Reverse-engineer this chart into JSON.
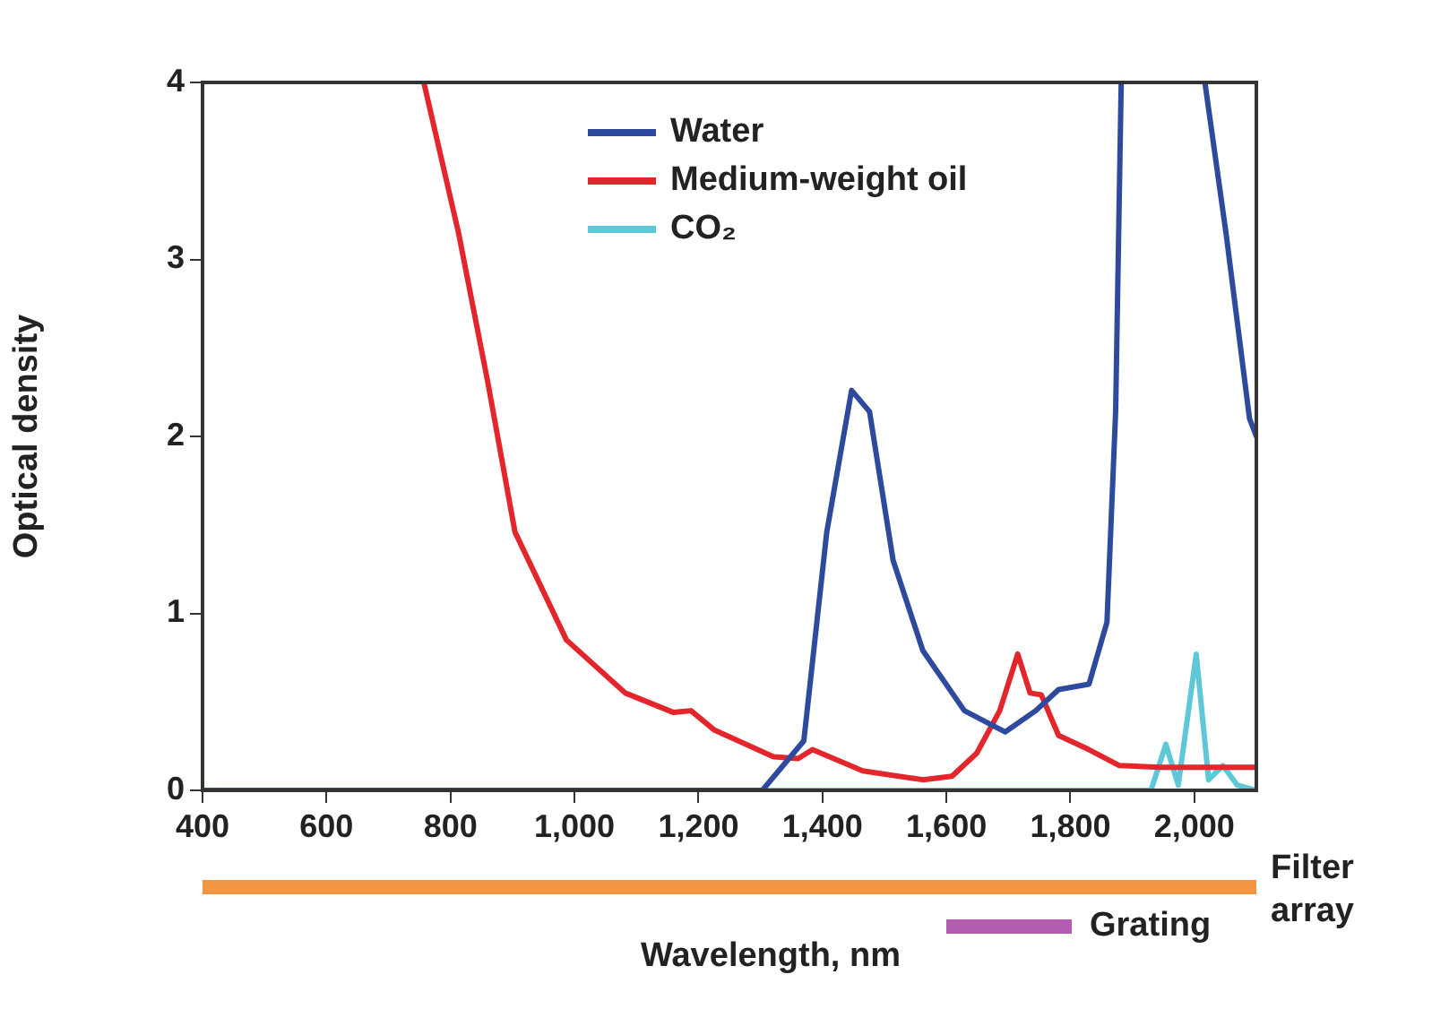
{
  "chart_data": {
    "type": "line",
    "xlabel": "Wavelength, nm",
    "ylabel": "Optical density",
    "xlim": [
      400,
      2100
    ],
    "xticks": [
      400,
      600,
      800,
      {
        "value": 1000,
        "label": "1,000"
      },
      {
        "value": 1200,
        "label": "1,200"
      },
      {
        "value": 1400,
        "label": "1,400"
      },
      {
        "value": 1600,
        "label": "1,600"
      },
      {
        "value": 1800,
        "label": "1,800"
      },
      {
        "value": 2000,
        "label": "2,000"
      }
    ],
    "ylim": [
      0,
      4
    ],
    "yticks": [
      0,
      1,
      2,
      3,
      4
    ],
    "grid": false,
    "legend": "top",
    "marker": "none",
    "line_style": "solid",
    "series": [
      {
        "name": "Water",
        "color": "#2e4a9e",
        "x": [
          400,
          1303,
          1370,
          1407,
          1447,
          1476,
          1514,
          1562,
          1629,
          1695,
          1744,
          1781,
          1830,
          1859,
          1873,
          1882,
          1950,
          2017,
          2051,
          2089,
          2100
        ],
        "values": [
          0,
          0,
          0.28,
          1.46,
          2.26,
          2.14,
          1.3,
          0.79,
          0.45,
          0.33,
          0.45,
          0.57,
          0.6,
          0.95,
          2.14,
          4,
          null,
          4,
          3.15,
          2.1,
          2.0
        ]
      },
      {
        "name": "Medium-weight oil",
        "color": "#e3262b",
        "x": [
          757,
          813,
          860,
          904,
          987,
          1082,
          1160,
          1188,
          1226,
          1321,
          1361,
          1384,
          1465,
          1562,
          1609,
          1649,
          1686,
          1715,
          1735,
          1753,
          1781,
          1830,
          1879,
          1945,
          2100
        ],
        "values": [
          4,
          3.15,
          2.31,
          1.46,
          0.85,
          0.55,
          0.44,
          0.45,
          0.34,
          0.19,
          0.18,
          0.23,
          0.11,
          0.06,
          0.08,
          0.21,
          0.45,
          0.77,
          0.55,
          0.54,
          0.31,
          0.23,
          0.14,
          0.13,
          0.13
        ]
      },
      {
        "name": "CO₂",
        "color": "#5ec8d8",
        "x": [
          400,
          1930,
          1954,
          1974,
          2003,
          2023,
          2046,
          2069,
          2100
        ],
        "values": [
          0,
          0,
          0.26,
          0.03,
          0.77,
          0.06,
          0.14,
          0.03,
          0
        ]
      }
    ],
    "annotations": [
      "Filter array",
      "Grating"
    ]
  }
}
